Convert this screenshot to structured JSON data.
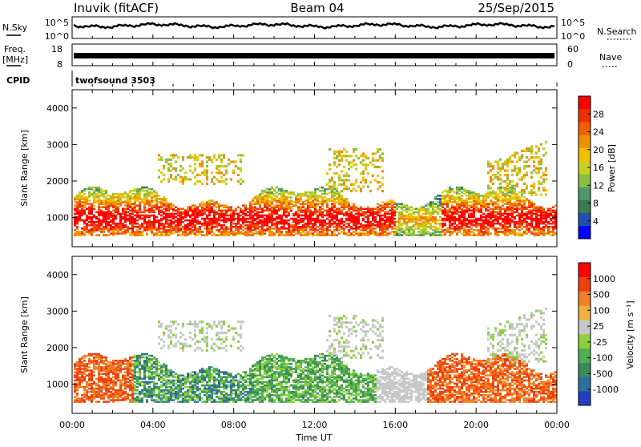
{
  "header": {
    "station": "Inuvik (fitACF)",
    "beam": "Beam 04",
    "date": "25/Sep/2015"
  },
  "top_panels": {
    "nsky_label": "N.Sky",
    "nsearch_label": "N.Search",
    "freq_label_1": "Freq.",
    "freq_label_2": "[MHz]",
    "nave_label": "Nave",
    "cpid_label": "CPID",
    "cpid_value": "twofsound 3503",
    "noise_ticks": [
      "10^5",
      "10^0"
    ],
    "freq_ticks": [
      "18",
      "8"
    ],
    "nave_ticks": [
      "60",
      "0"
    ]
  },
  "chart_data": [
    {
      "type": "heatmap",
      "ylabel": "Slant Range [km]",
      "xlabel": "",
      "x_ticks": [
        "00:00",
        "04:00",
        "08:00",
        "12:00",
        "16:00",
        "20:00",
        "00:00"
      ],
      "y_ticks": [
        1000,
        2000,
        3000,
        4000
      ],
      "ylim": [
        200,
        4500
      ],
      "xlim_hours": [
        0,
        24
      ],
      "colorbar": {
        "label": "Power [dB]",
        "ticks": [
          "28",
          "24",
          "20",
          "16",
          "12",
          "8",
          "4"
        ],
        "colors": [
          "#0000ff",
          "#2050b0",
          "#3c7a50",
          "#4f9a6a",
          "#8ac040",
          "#c8d020",
          "#f0c000",
          "#f09000",
          "#f06000",
          "#f03000",
          "#ff0000"
        ],
        "range": [
          0,
          32
        ]
      }
    },
    {
      "type": "heatmap",
      "ylabel": "Slant Range [km]",
      "xlabel": "Time UT",
      "x_ticks": [
        "00:00",
        "04:00",
        "08:00",
        "12:00",
        "16:00",
        "20:00",
        "00:00"
      ],
      "y_ticks": [
        1000,
        2000,
        3000,
        4000
      ],
      "ylim": [
        200,
        4500
      ],
      "xlim_hours": [
        0,
        24
      ],
      "colorbar": {
        "label": "Velocity [m s⁻¹]",
        "ticks": [
          "1000",
          "500",
          "100",
          "25",
          "-25",
          "-100",
          "-500",
          "-1000"
        ],
        "colors": [
          "#2040c0",
          "#2e6ea0",
          "#3c8a5a",
          "#50b050",
          "#8cd040",
          "#c8c8c8",
          "#f0b040",
          "#f08020",
          "#f04010",
          "#ff0000"
        ]
      }
    }
  ]
}
